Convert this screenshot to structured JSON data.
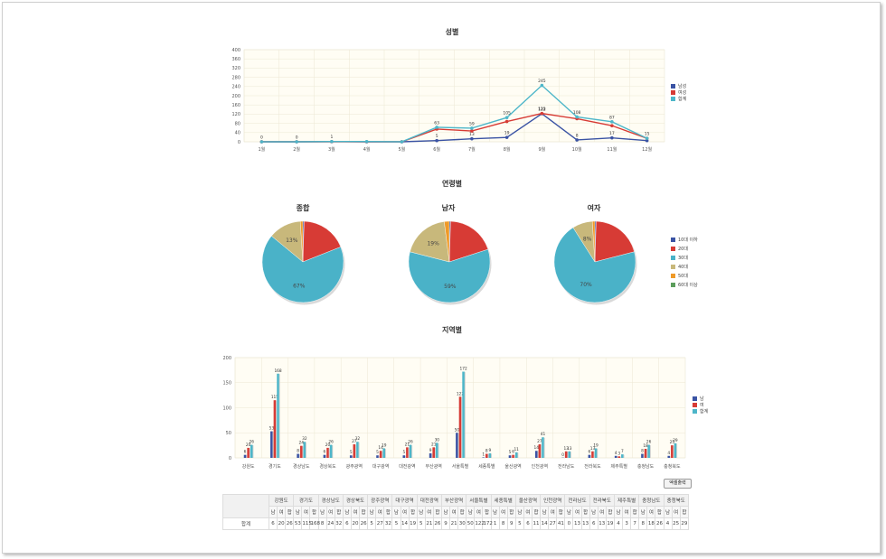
{
  "titles": {
    "gender": "성별",
    "age": "연령별",
    "region": "지역별"
  },
  "export_button": "엑셀출력",
  "colors": {
    "male": "#3a53a4",
    "female": "#d73b35",
    "total": "#4db6c9",
    "a10": "#3a53a4",
    "a20": "#d73b35",
    "a30": "#4ab2c8",
    "a40": "#c8b87b",
    "a50": "#ef9a28",
    "a60": "#5c9e5c"
  },
  "chart_data": [
    {
      "type": "line",
      "title": "성별",
      "x": [
        "1월",
        "2월",
        "3월",
        "4월",
        "5월",
        "6월",
        "7월",
        "8월",
        "9월",
        "10월",
        "11월",
        "12월"
      ],
      "ylim": [
        0,
        400
      ],
      "yticks": [
        0,
        40,
        80,
        120,
        160,
        200,
        240,
        280,
        320,
        360,
        400
      ],
      "series": [
        {
          "name": "남성",
          "values": [
            0,
            0,
            1,
            0,
            0,
            5,
            13,
            19,
            122,
            8,
            17,
            5
          ],
          "labels": [
            "0",
            "0",
            "1",
            "",
            "",
            "5",
            "13",
            "19",
            "122",
            "8",
            "17",
            ""
          ]
        },
        {
          "name": "여성",
          "values": [
            0,
            0,
            0,
            0,
            0,
            55,
            47,
            88,
            123,
            100,
            70,
            15
          ],
          "labels": [
            "",
            "",
            "",
            "",
            "",
            "",
            "",
            "",
            "123",
            "",
            "",
            ""
          ]
        },
        {
          "name": "합계",
          "values": [
            0,
            0,
            1,
            1,
            0,
            63,
            59,
            105,
            245,
            108,
            87,
            15
          ],
          "labels": [
            "",
            "",
            "",
            "",
            "",
            "63",
            "59",
            "105",
            "245",
            "108",
            "87",
            "15"
          ]
        }
      ]
    },
    {
      "type": "pie",
      "title": "종합",
      "slices": [
        {
          "name": "10대 이하",
          "value": 0.5
        },
        {
          "name": "20대",
          "value": 18.5
        },
        {
          "name": "30대",
          "value": 67
        },
        {
          "name": "40대",
          "value": 13
        },
        {
          "name": "50대",
          "value": 1
        },
        {
          "name": "60대 이상",
          "value": 0
        }
      ],
      "labels": [
        "",
        "",
        "67%",
        "13%",
        "",
        ""
      ]
    },
    {
      "type": "pie",
      "title": "남자",
      "slices": [
        {
          "name": "10대 이하",
          "value": 0.5
        },
        {
          "name": "20대",
          "value": 19.5
        },
        {
          "name": "30대",
          "value": 59
        },
        {
          "name": "40대",
          "value": 19
        },
        {
          "name": "50대",
          "value": 2
        },
        {
          "name": "60대 이상",
          "value": 0
        }
      ],
      "labels": [
        "",
        "",
        "59%",
        "19%",
        "",
        ""
      ]
    },
    {
      "type": "pie",
      "title": "여자",
      "slices": [
        {
          "name": "10대 이하",
          "value": 0.5
        },
        {
          "name": "20대",
          "value": 20.5
        },
        {
          "name": "30대",
          "value": 70
        },
        {
          "name": "40대",
          "value": 8
        },
        {
          "name": "50대",
          "value": 1
        },
        {
          "name": "60대 이상",
          "value": 0
        }
      ],
      "labels": [
        "",
        "",
        "70%",
        "8%",
        "",
        ""
      ]
    },
    {
      "type": "bar",
      "title": "지역별",
      "categories": [
        "강원도",
        "경기도",
        "경상남도",
        "경상북도",
        "광주광역",
        "대구광역",
        "대전광역",
        "부산광역",
        "서울특별",
        "세종특별",
        "울산광역",
        "인천광역",
        "전라남도",
        "전라북도",
        "제주특별",
        "충청남도",
        "충청북도"
      ],
      "ylim": [
        0,
        200
      ],
      "yticks": [
        0,
        50,
        100,
        150,
        200
      ],
      "series": [
        {
          "name": "남",
          "values": [
            6,
            53,
            8,
            6,
            5,
            5,
            5,
            9,
            50,
            1,
            5,
            14,
            0,
            6,
            4,
            8,
            4
          ]
        },
        {
          "name": "여",
          "values": [
            20,
            115,
            24,
            20,
            27,
            14,
            21,
            21,
            122,
            8,
            6,
            27,
            13,
            13,
            3,
            18,
            25
          ]
        },
        {
          "name": "합계",
          "values": [
            26,
            168,
            32,
            26,
            32,
            19,
            26,
            30,
            172,
            9,
            11,
            41,
            13,
            19,
            7,
            26,
            29
          ]
        }
      ]
    }
  ],
  "age_legend": [
    "10대 이하",
    "20대",
    "30대",
    "40대",
    "50대",
    "60대 이상"
  ],
  "table": {
    "regions": [
      "강원도",
      "경기도",
      "경상남도",
      "경상북도",
      "광주광역",
      "대구광역",
      "대전광역",
      "부산광역",
      "서울특별",
      "세종특별",
      "울산광역",
      "인천광역",
      "전라남도",
      "전라북도",
      "제주특별",
      "충청남도",
      "충청북도"
    ],
    "sub": [
      "남",
      "여",
      "합"
    ],
    "row_label": "합계",
    "values": [
      6,
      20,
      26,
      53,
      115,
      168,
      8,
      24,
      32,
      6,
      20,
      26,
      5,
      27,
      32,
      5,
      14,
      19,
      5,
      21,
      26,
      9,
      21,
      30,
      50,
      122,
      172,
      1,
      8,
      9,
      5,
      6,
      11,
      14,
      27,
      41,
      0,
      13,
      13,
      6,
      13,
      19,
      4,
      3,
      7,
      8,
      18,
      26,
      4,
      25,
      29
    ]
  }
}
